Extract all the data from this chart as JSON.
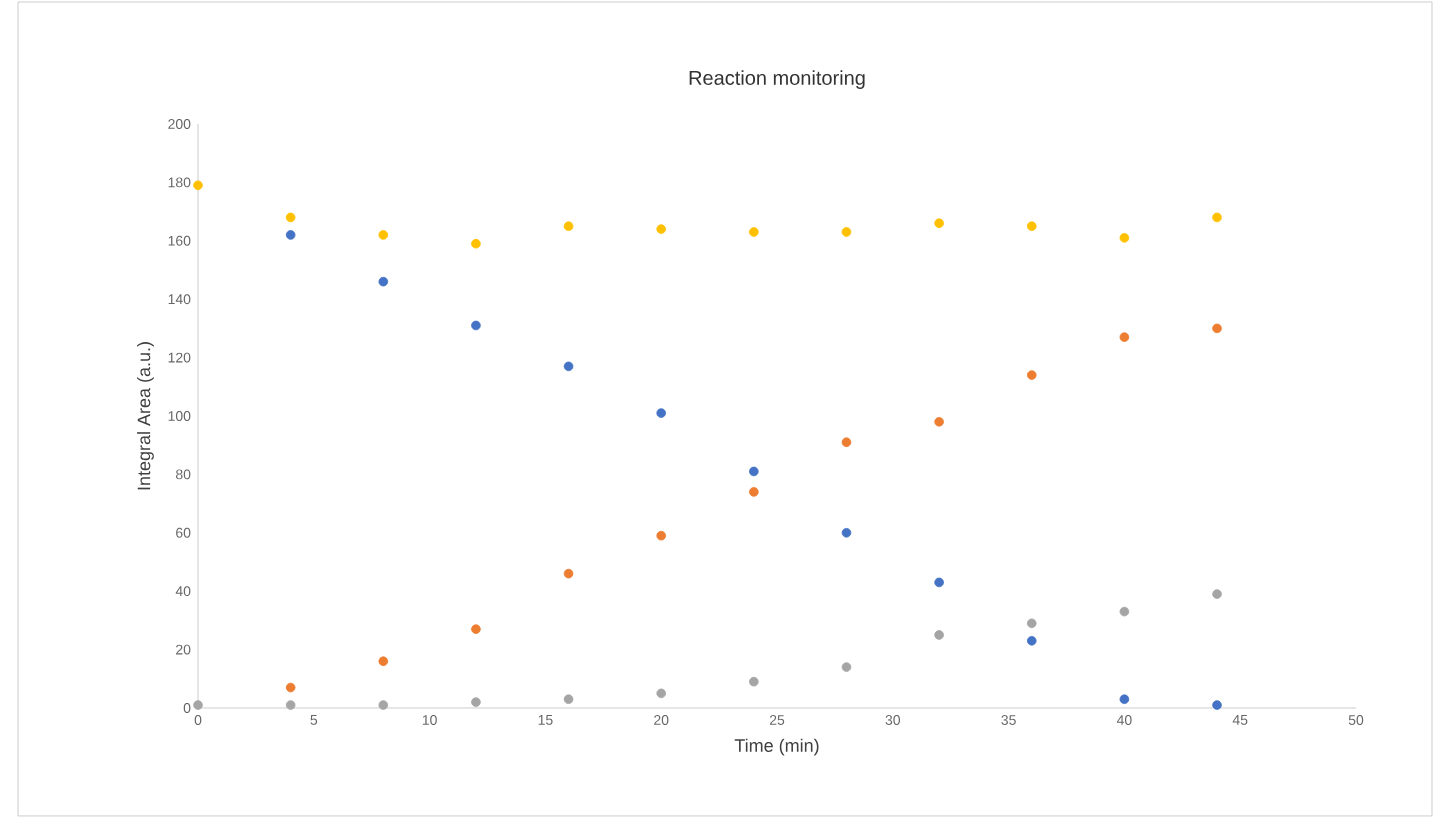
{
  "chart_data": {
    "type": "scatter",
    "title": "Reaction monitoring",
    "xlabel": "Time (min)",
    "ylabel": "Integral Area (a.u.)",
    "xlim": [
      0,
      50
    ],
    "xticks": [
      0,
      5,
      10,
      15,
      20,
      25,
      30,
      35,
      40,
      45,
      50
    ],
    "ylim": [
      0,
      200
    ],
    "yticks": [
      0,
      20,
      40,
      60,
      80,
      100,
      120,
      140,
      160,
      180,
      200
    ],
    "grid": false,
    "legend": false,
    "marker": "circle",
    "series": [
      {
        "color": "#4472c4",
        "x": [
          4,
          8,
          12,
          16,
          20,
          24,
          28,
          32,
          36,
          40,
          44
        ],
        "values": [
          162,
          146,
          131,
          117,
          101,
          81,
          60,
          43,
          23,
          3,
          1
        ]
      },
      {
        "color": "#ed7d31",
        "x": [
          4,
          8,
          12,
          16,
          20,
          24,
          28,
          32,
          36,
          40,
          44
        ],
        "values": [
          7,
          16,
          27,
          46,
          59,
          74,
          91,
          98,
          114,
          127,
          130
        ]
      },
      {
        "color": "#a5a5a5",
        "x": [
          0,
          4,
          8,
          12,
          16,
          20,
          24,
          28,
          32,
          36,
          40,
          44
        ],
        "values": [
          1,
          1,
          1,
          2,
          3,
          5,
          9,
          14,
          25,
          29,
          33,
          39
        ]
      },
      {
        "color": "#ffc000",
        "x": [
          0,
          4,
          8,
          12,
          16,
          20,
          24,
          28,
          32,
          36,
          40,
          44
        ],
        "values": [
          179,
          168,
          162,
          159,
          165,
          164,
          163,
          163,
          166,
          165,
          161,
          168
        ]
      }
    ]
  }
}
